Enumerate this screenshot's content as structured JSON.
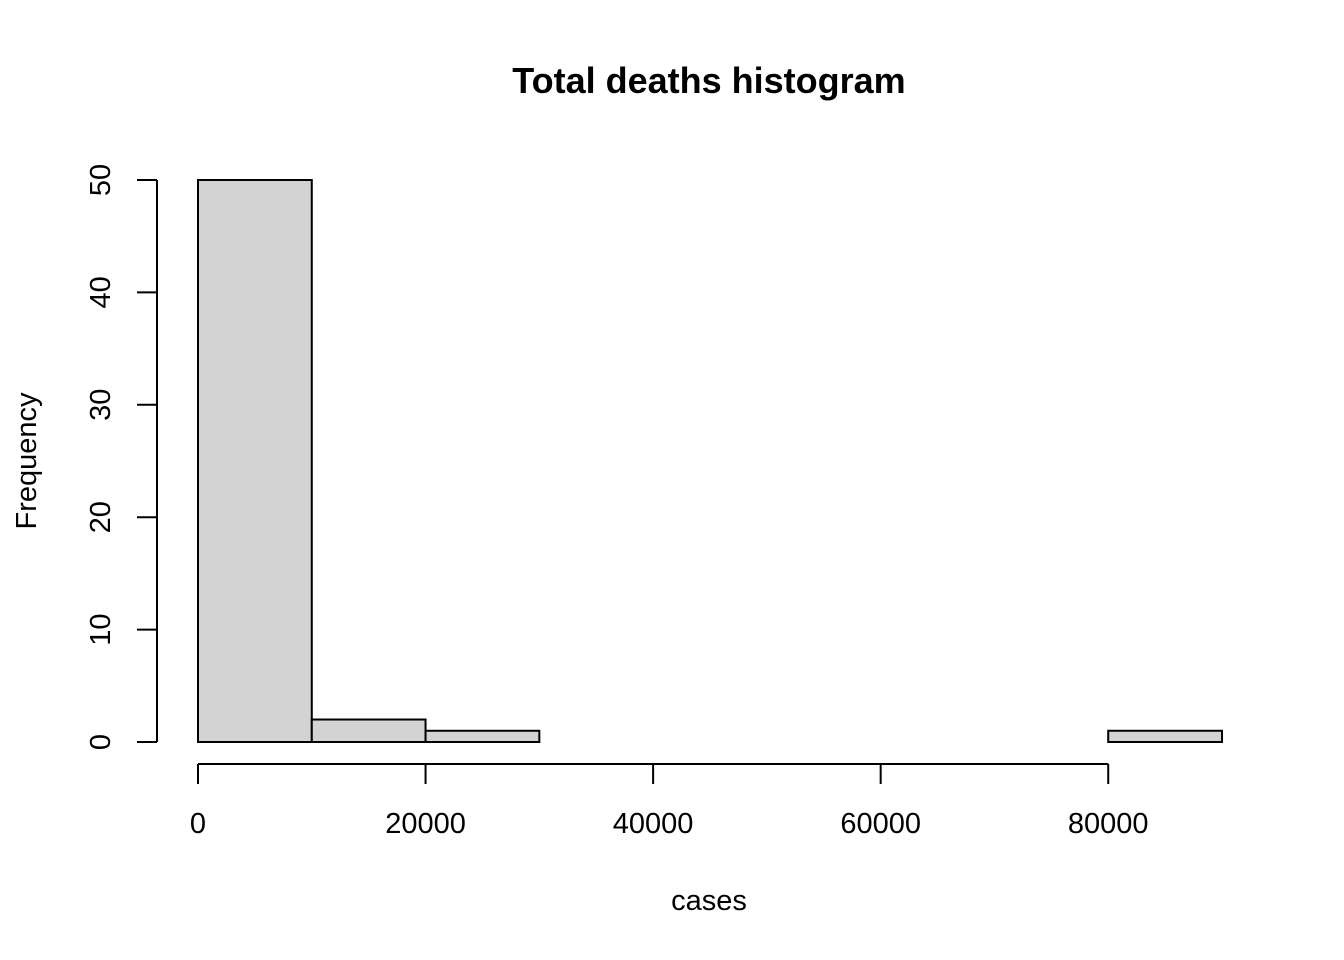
{
  "chart_data": {
    "type": "bar",
    "title": "Total deaths histogram",
    "xlabel": "cases",
    "ylabel": "Frequency",
    "bin_edges": [
      0,
      10000,
      20000,
      30000,
      40000,
      50000,
      60000,
      70000,
      80000,
      90000
    ],
    "values": [
      50,
      2,
      1,
      0,
      0,
      0,
      0,
      0,
      1
    ],
    "xlim": [
      0,
      90000
    ],
    "ylim": [
      0,
      50
    ],
    "x_ticks": [
      0,
      20000,
      40000,
      60000,
      80000
    ],
    "x_tick_labels": [
      "0",
      "20000",
      "40000",
      "60000",
      "80000"
    ],
    "y_ticks": [
      0,
      10,
      20,
      30,
      40,
      50
    ],
    "y_tick_labels": [
      "0",
      "10",
      "20",
      "30",
      "40",
      "50"
    ],
    "grid": false,
    "bar_fill": "#d3d3d3",
    "bar_stroke": "#000000"
  }
}
